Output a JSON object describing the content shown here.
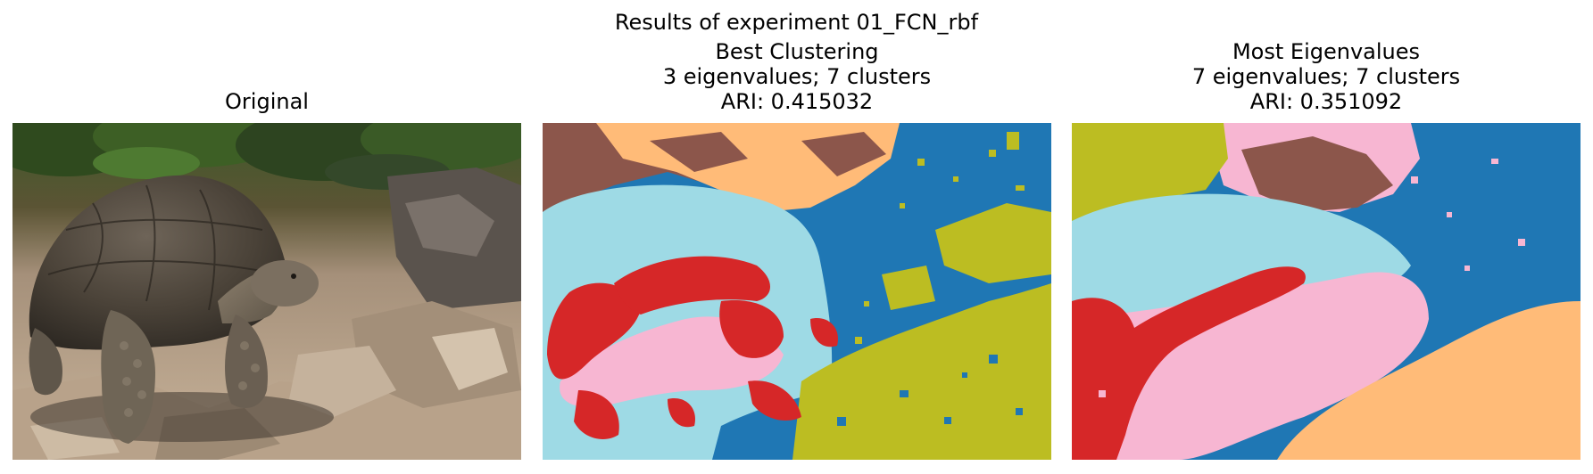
{
  "figure": {
    "suptitle": "Results of experiment 01_FCN_rbf"
  },
  "panels": [
    {
      "title_lines": [
        "Original"
      ],
      "image": "photo of a giant tortoise standing on sunlit rocks with green foliage behind"
    },
    {
      "title_lines": [
        "Best Clustering",
        "3 eigenvalues; 7 clusters",
        "ARI: 0.415032"
      ],
      "image": "7-color cluster segmentation map of the tortoise photo"
    },
    {
      "title_lines": [
        "Most Eigenvalues",
        "7 eigenvalues; 7 clusters",
        "ARI: 0.351092"
      ],
      "image": "7-color cluster segmentation map of the tortoise photo"
    }
  ],
  "cluster_colors": {
    "blue": "#1f77b4",
    "light_blue": "#9edae5",
    "red": "#d62728",
    "pink": "#f7b6d2",
    "brown": "#8c564b",
    "orange": "#ffbb78",
    "olive": "#bcbd22"
  }
}
